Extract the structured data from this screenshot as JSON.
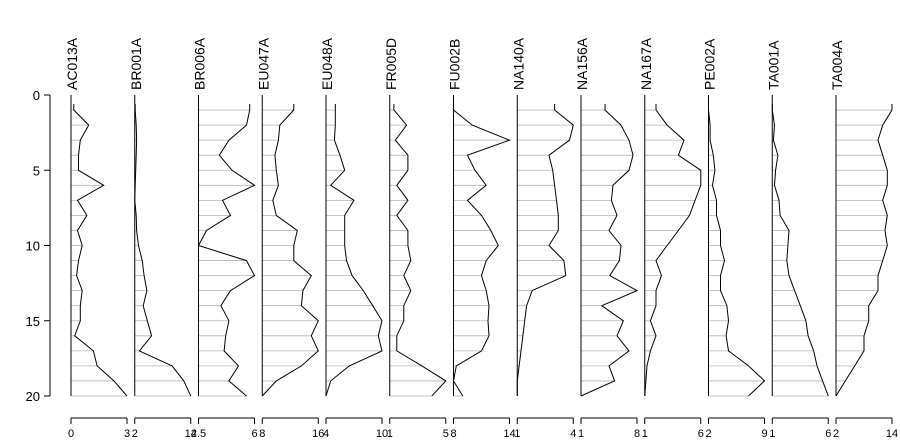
{
  "chart_data": {
    "type": "line",
    "layout": "stratigraphic-panels",
    "title": "",
    "ylabel": "",
    "ylim": [
      20,
      0
    ],
    "yticks": [
      0,
      5,
      10,
      15,
      20
    ],
    "depths": [
      1,
      2,
      3,
      4,
      5,
      6,
      7,
      8,
      9,
      10,
      11,
      12,
      13,
      14,
      15,
      16,
      17,
      18,
      19,
      20
    ],
    "grid": false,
    "line_color": "#000000",
    "hatch_color": "#b4b4b4",
    "panels": [
      {
        "name": "AC013A",
        "xlim": [
          0,
          3
        ],
        "xticks": [
          "0",
          "3"
        ],
        "values": [
          0.15,
          0.95,
          0.5,
          0.4,
          0.4,
          1.75,
          0.35,
          0.85,
          0.35,
          0.6,
          0.4,
          0.3,
          0.6,
          0.5,
          0.5,
          0.2,
          1.2,
          1.4,
          2.3,
          3.0
        ]
      },
      {
        "name": "BR001A",
        "xlim": [
          2,
          14
        ],
        "xticks": [
          "2",
          "14"
        ],
        "values": [
          2.1,
          2.3,
          2.4,
          2.3,
          2.2,
          2.1,
          2.0,
          2.3,
          2.4,
          2.8,
          3.6,
          4.0,
          4.6,
          3.8,
          4.7,
          5.6,
          3.0,
          10.0,
          12.5,
          14.0
        ]
      },
      {
        "name": "BR006A",
        "xlim": [
          2.5,
          6
        ],
        "xticks": [
          "2.5",
          "6"
        ],
        "values": [
          5.7,
          5.5,
          4.4,
          3.8,
          4.6,
          6.0,
          4.0,
          4.5,
          3.0,
          2.5,
          5.5,
          6.0,
          4.5,
          3.9,
          4.4,
          4.2,
          4.1,
          5.0,
          4.4,
          5.5
        ]
      },
      {
        "name": "EU047A",
        "xlim": [
          8,
          16
        ],
        "xticks": [
          "8",
          "16"
        ],
        "values": [
          12.5,
          10.5,
          10.3,
          9.8,
          10.0,
          10.3,
          9.5,
          10.0,
          13.0,
          12.5,
          12.5,
          15.0,
          13.8,
          13.6,
          16.0,
          15.0,
          16.0,
          13.6,
          10.0,
          8.0
        ]
      },
      {
        "name": "EU048A",
        "xlim": [
          4,
          10
        ],
        "xticks": [
          "4",
          "10"
        ],
        "values": [
          5.0,
          5.0,
          4.9,
          5.5,
          6.0,
          4.5,
          7.0,
          6.0,
          6.0,
          6.0,
          6.2,
          6.8,
          8.0,
          9.0,
          10.0,
          9.6,
          10.0,
          6.5,
          4.5,
          4.0
        ]
      },
      {
        "name": "FR005D",
        "xlim": [
          1,
          5
        ],
        "xticks": [
          "1",
          "5"
        ],
        "values": [
          1.3,
          2.2,
          1.4,
          2.3,
          2.3,
          1.5,
          2.3,
          1.5,
          2.3,
          2.3,
          2.5,
          2.0,
          2.5,
          2.0,
          2.0,
          1.5,
          1.5,
          3.3,
          5.0,
          4.0
        ]
      },
      {
        "name": "FU002B",
        "xlim": [
          8,
          14
        ],
        "xticks": [
          "8",
          "14"
        ],
        "values": [
          8.0,
          10.0,
          14.0,
          9.5,
          10.3,
          11.5,
          9.5,
          11.0,
          12.0,
          12.8,
          11.5,
          11.0,
          11.5,
          11.8,
          11.7,
          11.8,
          11.0,
          8.3,
          8.0,
          9.0
        ]
      },
      {
        "name": "NA140A",
        "xlim": [
          1,
          4
        ],
        "xticks": [
          "1",
          "4"
        ],
        "values": [
          3.0,
          4.0,
          3.8,
          2.7,
          2.9,
          3.0,
          3.1,
          3.2,
          3.2,
          2.7,
          3.5,
          3.6,
          1.8,
          1.5,
          1.4,
          1.3,
          1.2,
          1.1,
          1.0,
          1.0
        ]
      },
      {
        "name": "NA156A",
        "xlim": [
          1,
          8
        ],
        "xticks": [
          "1",
          "8"
        ],
        "values": [
          4.0,
          6.0,
          7.0,
          7.5,
          7.0,
          5.0,
          4.8,
          5.5,
          4.5,
          6.0,
          5.8,
          4.6,
          8.0,
          3.6,
          6.3,
          5.5,
          7.0,
          4.5,
          5.2,
          1.0
        ]
      },
      {
        "name": "NA167A",
        "xlim": [
          1,
          6
        ],
        "xticks": [
          "1",
          "6"
        ],
        "values": [
          2.0,
          3.0,
          4.5,
          4.0,
          6.0,
          6.0,
          5.5,
          5.0,
          4.0,
          3.0,
          2.0,
          2.5,
          2.0,
          2.0,
          1.5,
          2.0,
          1.5,
          1.2,
          1.1,
          1.0
        ]
      },
      {
        "name": "PE002A",
        "xlim": [
          2,
          9
        ],
        "xticks": [
          "2",
          "9"
        ],
        "values": [
          2.0,
          2.2,
          2.2,
          2.6,
          2.8,
          2.5,
          3.0,
          3.0,
          3.5,
          3.5,
          4.0,
          3.5,
          3.5,
          4.3,
          4.5,
          4.2,
          4.5,
          7.0,
          9.0,
          7.0
        ]
      },
      {
        "name": "TA001A",
        "xlim": [
          1,
          6
        ],
        "xticks": [
          "1",
          "6"
        ],
        "values": [
          1.0,
          1.2,
          1.1,
          1.5,
          1.3,
          1.2,
          1.6,
          1.7,
          2.5,
          2.4,
          2.3,
          2.5,
          3.0,
          3.5,
          4.0,
          4.2,
          4.7,
          5.0,
          5.5,
          6.0
        ]
      },
      {
        "name": "TA004A",
        "xlim": [
          2,
          14
        ],
        "xticks": [
          "2",
          "14"
        ],
        "values": [
          14.0,
          12.0,
          11.0,
          12.0,
          13.0,
          13.0,
          12.0,
          13.0,
          12.5,
          13.0,
          12.0,
          11.0,
          11.0,
          9.0,
          9.0,
          8.0,
          8.0,
          6.0,
          4.0,
          2.0
        ]
      }
    ]
  }
}
